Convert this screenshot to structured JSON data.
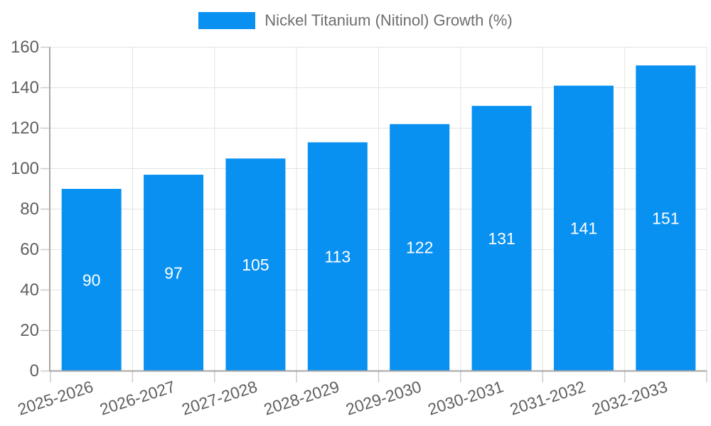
{
  "chart_data": {
    "type": "bar",
    "title": "",
    "legend_label": "Nickel Titanium (Nitinol) Growth (%)",
    "legend_position": "top-center",
    "categories": [
      "2025-2026",
      "2026-2027",
      "2027-2028",
      "2028-2029",
      "2029-2030",
      "2030-2031",
      "2031-2032",
      "2032-2033"
    ],
    "series": [
      {
        "name": "Nickel Titanium (Nitinol) Growth (%)",
        "values": [
          90,
          97,
          105,
          113,
          122,
          131,
          141,
          151
        ]
      }
    ],
    "value_labels_shown": true,
    "xlabel": "",
    "ylabel": "",
    "ylim": [
      0,
      160
    ],
    "yticks": [
      0,
      20,
      40,
      60,
      80,
      100,
      120,
      140,
      160
    ],
    "grid": true,
    "x_label_rotation_deg": -18,
    "colors": {
      "bar": "#0991F2",
      "grid": "#E3E3E3",
      "axis_line": "#A6A6A6",
      "tick": "#CCCCCC",
      "axis_label": "#606060",
      "legend_text": "#6E6E6E",
      "value_label": "#FFFFFF",
      "background": "#FFFFFF"
    }
  }
}
